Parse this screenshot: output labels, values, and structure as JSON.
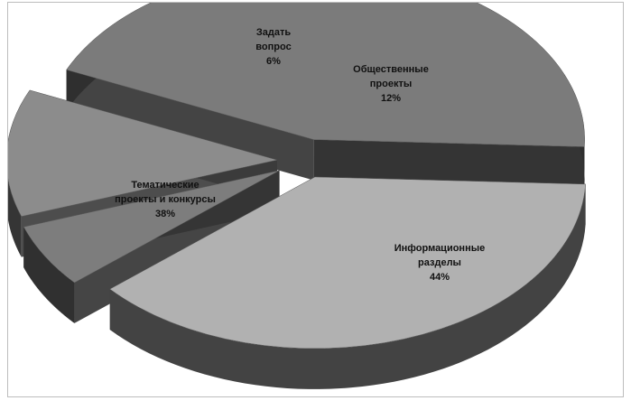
{
  "chart_data": {
    "type": "pie",
    "style": "3d-exploded",
    "legend": "none",
    "slices": [
      {
        "label_lines": [
          "Информационные",
          "разделы"
        ],
        "value": 44,
        "value_label": "44%",
        "color": "#7b7b7b"
      },
      {
        "label_lines": [
          "Тематические",
          "проекты и конкурсы"
        ],
        "value": 38,
        "value_label": "38%",
        "color": "#b1b1b1"
      },
      {
        "label_lines": [
          "Задать",
          "вопрос"
        ],
        "value": 6,
        "value_label": "6%",
        "color": "#7d7d7d"
      },
      {
        "label_lines": [
          "Общественные",
          "проекты"
        ],
        "value": 12,
        "value_label": "12%",
        "color": "#8c8c8c"
      }
    ]
  }
}
